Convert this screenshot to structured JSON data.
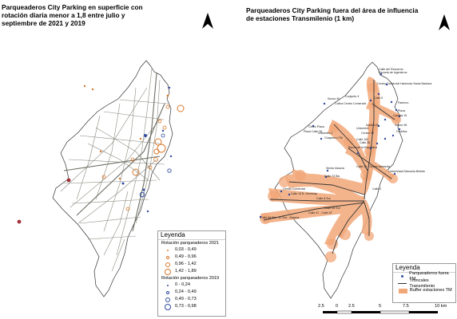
{
  "left_map": {
    "title": "Parqueaderos City Parking en superficie con rotación diaria menor a 1,8 entre julio y septiembre de 2021 y 2019",
    "legend": {
      "heading": "Leyenda",
      "group_2021": {
        "title": "Rotación parqueaderos 2021",
        "items": [
          {
            "label": "0,03 - 0,49",
            "size": 1
          },
          {
            "label": "0,49 - 0,96",
            "size": 2
          },
          {
            "label": "0,96 - 1,42",
            "size": 3
          },
          {
            "label": "1,42 - 1,89",
            "size": 4
          }
        ],
        "color": "#d9782a"
      },
      "group_2019": {
        "title": "Rotación  parqueaderos 2019",
        "items": [
          {
            "label": "0 - 0,24",
            "size": 1
          },
          {
            "label": "0,24 - 0,49",
            "size": 2
          },
          {
            "label": "0,49 - 0,73",
            "size": 3
          },
          {
            "label": "0,73 - 0,98",
            "size": 4
          }
        ],
        "color": "#2f4aa0"
      }
    }
  },
  "right_map": {
    "title": "Parqueaderos City Parking fuera del área de influencia de estaciones Transmilenio (1 km)",
    "legend": {
      "heading": "Leyenda",
      "items": [
        {
          "label": "Parqueaderos fuera TM",
          "symbol": "point",
          "color": "#2f4aa0"
        },
        {
          "label": "Troncales Transmilenio",
          "symbol": "line",
          "color": "#333333"
        },
        {
          "label": "Buffer estaciones TM",
          "symbol": "fill",
          "color": "#f2a779"
        }
      ]
    },
    "scale_bar": {
      "labels": [
        "2.5",
        "0",
        "2.5",
        "5",
        "7.5",
        "10 km"
      ]
    },
    "place_labels": [
      "Calle del Recuerdo",
      "Escuela de ingenieros",
      "Centro Comercial Hacienda Santa Barbara",
      "Sector 90",
      "Conjunto 4",
      "Colina Centro Comercial",
      "Calle 5",
      "Palermo",
      "Plaza",
      "Carrera 15",
      "Norte 125",
      "Unicentro",
      "Centro 93",
      "Sector 98",
      "Cedritos",
      "Unicentro 2",
      "Chapinero TM",
      "Calle 100",
      "Banco de la Republica",
      "Calle 26",
      "Cedro Plaza",
      "Plaza Calle 26",
      "Sector Alcacia",
      "Calle 72 Bis",
      "Universidad Manuela Beltrán",
      "Calle 26 - Sector Alameda",
      "Centro Comercial",
      "Calle 13 B. Kennedy",
      "Calle 8 Sur",
      "Calle 40 Sur",
      "Calle 47 - Calle 57",
      "Calle 2",
      "Calle 54 Bis - 10 Sur - Soacha"
    ]
  }
}
